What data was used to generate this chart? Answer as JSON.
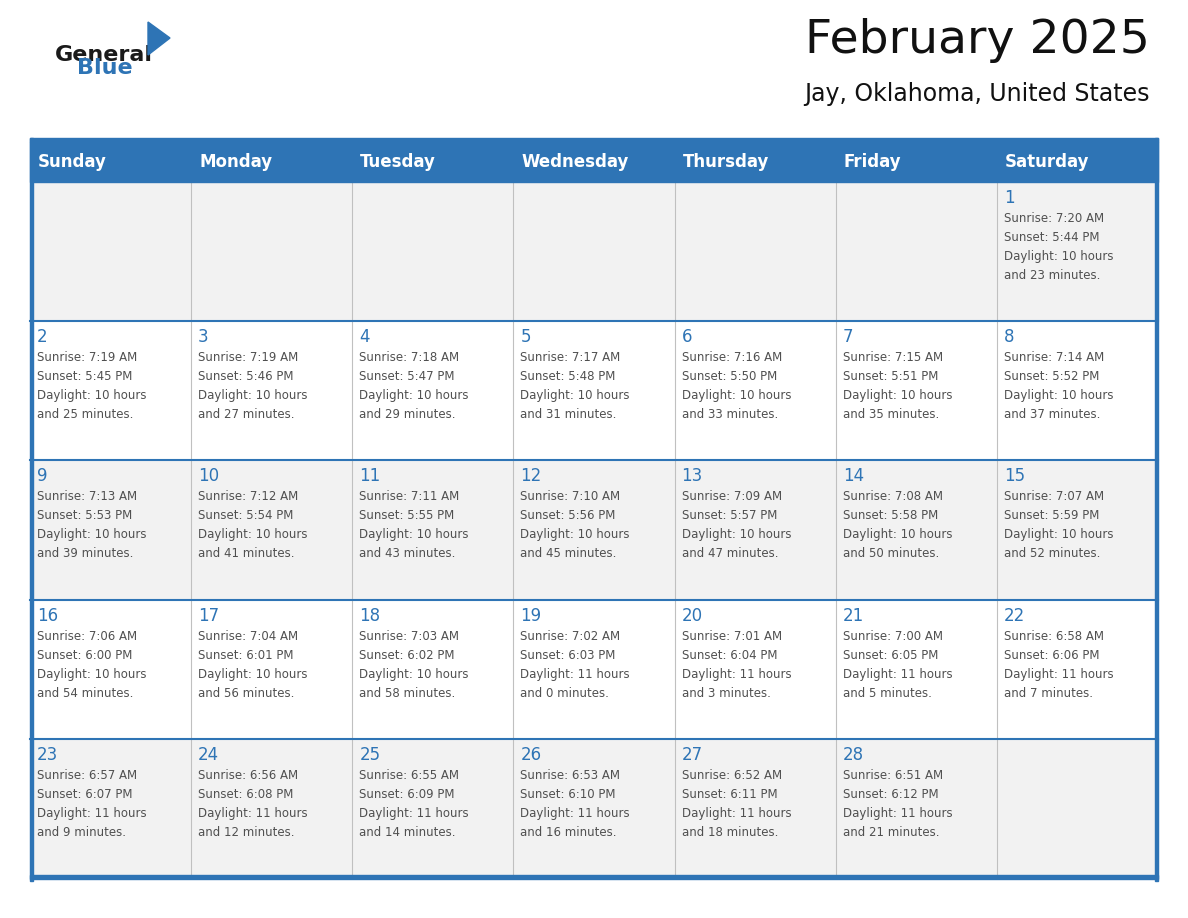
{
  "title": "February 2025",
  "subtitle": "Jay, Oklahoma, United States",
  "header_bg": "#2E74B5",
  "header_text_color": "#FFFFFF",
  "title_font_size": 34,
  "subtitle_font_size": 17,
  "day_names": [
    "Sunday",
    "Monday",
    "Tuesday",
    "Wednesday",
    "Thursday",
    "Friday",
    "Saturday"
  ],
  "cell_bg_even": "#F2F2F2",
  "cell_bg_odd": "#FFFFFF",
  "separator_color": "#2E74B5",
  "day_number_color": "#2E74B5",
  "info_text_color": "#505050",
  "weeks": [
    [
      null,
      null,
      null,
      null,
      null,
      null,
      1
    ],
    [
      2,
      3,
      4,
      5,
      6,
      7,
      8
    ],
    [
      9,
      10,
      11,
      12,
      13,
      14,
      15
    ],
    [
      16,
      17,
      18,
      19,
      20,
      21,
      22
    ],
    [
      23,
      24,
      25,
      26,
      27,
      28,
      null
    ]
  ],
  "day_data": {
    "1": {
      "sunrise": "7:20 AM",
      "sunset": "5:44 PM",
      "daylight_hours": 10,
      "daylight_minutes": 23
    },
    "2": {
      "sunrise": "7:19 AM",
      "sunset": "5:45 PM",
      "daylight_hours": 10,
      "daylight_minutes": 25
    },
    "3": {
      "sunrise": "7:19 AM",
      "sunset": "5:46 PM",
      "daylight_hours": 10,
      "daylight_minutes": 27
    },
    "4": {
      "sunrise": "7:18 AM",
      "sunset": "5:47 PM",
      "daylight_hours": 10,
      "daylight_minutes": 29
    },
    "5": {
      "sunrise": "7:17 AM",
      "sunset": "5:48 PM",
      "daylight_hours": 10,
      "daylight_minutes": 31
    },
    "6": {
      "sunrise": "7:16 AM",
      "sunset": "5:50 PM",
      "daylight_hours": 10,
      "daylight_minutes": 33
    },
    "7": {
      "sunrise": "7:15 AM",
      "sunset": "5:51 PM",
      "daylight_hours": 10,
      "daylight_minutes": 35
    },
    "8": {
      "sunrise": "7:14 AM",
      "sunset": "5:52 PM",
      "daylight_hours": 10,
      "daylight_minutes": 37
    },
    "9": {
      "sunrise": "7:13 AM",
      "sunset": "5:53 PM",
      "daylight_hours": 10,
      "daylight_minutes": 39
    },
    "10": {
      "sunrise": "7:12 AM",
      "sunset": "5:54 PM",
      "daylight_hours": 10,
      "daylight_minutes": 41
    },
    "11": {
      "sunrise": "7:11 AM",
      "sunset": "5:55 PM",
      "daylight_hours": 10,
      "daylight_minutes": 43
    },
    "12": {
      "sunrise": "7:10 AM",
      "sunset": "5:56 PM",
      "daylight_hours": 10,
      "daylight_minutes": 45
    },
    "13": {
      "sunrise": "7:09 AM",
      "sunset": "5:57 PM",
      "daylight_hours": 10,
      "daylight_minutes": 47
    },
    "14": {
      "sunrise": "7:08 AM",
      "sunset": "5:58 PM",
      "daylight_hours": 10,
      "daylight_minutes": 50
    },
    "15": {
      "sunrise": "7:07 AM",
      "sunset": "5:59 PM",
      "daylight_hours": 10,
      "daylight_minutes": 52
    },
    "16": {
      "sunrise": "7:06 AM",
      "sunset": "6:00 PM",
      "daylight_hours": 10,
      "daylight_minutes": 54
    },
    "17": {
      "sunrise": "7:04 AM",
      "sunset": "6:01 PM",
      "daylight_hours": 10,
      "daylight_minutes": 56
    },
    "18": {
      "sunrise": "7:03 AM",
      "sunset": "6:02 PM",
      "daylight_hours": 10,
      "daylight_minutes": 58
    },
    "19": {
      "sunrise": "7:02 AM",
      "sunset": "6:03 PM",
      "daylight_hours": 11,
      "daylight_minutes": 0
    },
    "20": {
      "sunrise": "7:01 AM",
      "sunset": "6:04 PM",
      "daylight_hours": 11,
      "daylight_minutes": 3
    },
    "21": {
      "sunrise": "7:00 AM",
      "sunset": "6:05 PM",
      "daylight_hours": 11,
      "daylight_minutes": 5
    },
    "22": {
      "sunrise": "6:58 AM",
      "sunset": "6:06 PM",
      "daylight_hours": 11,
      "daylight_minutes": 7
    },
    "23": {
      "sunrise": "6:57 AM",
      "sunset": "6:07 PM",
      "daylight_hours": 11,
      "daylight_minutes": 9
    },
    "24": {
      "sunrise": "6:56 AM",
      "sunset": "6:08 PM",
      "daylight_hours": 11,
      "daylight_minutes": 12
    },
    "25": {
      "sunrise": "6:55 AM",
      "sunset": "6:09 PM",
      "daylight_hours": 11,
      "daylight_minutes": 14
    },
    "26": {
      "sunrise": "6:53 AM",
      "sunset": "6:10 PM",
      "daylight_hours": 11,
      "daylight_minutes": 16
    },
    "27": {
      "sunrise": "6:52 AM",
      "sunset": "6:11 PM",
      "daylight_hours": 11,
      "daylight_minutes": 18
    },
    "28": {
      "sunrise": "6:51 AM",
      "sunset": "6:12 PM",
      "daylight_hours": 11,
      "daylight_minutes": 21
    }
  },
  "logo_general_color": "#1a1a1a",
  "logo_blue_color": "#2E74B5",
  "logo_triangle_color": "#2E74B5"
}
